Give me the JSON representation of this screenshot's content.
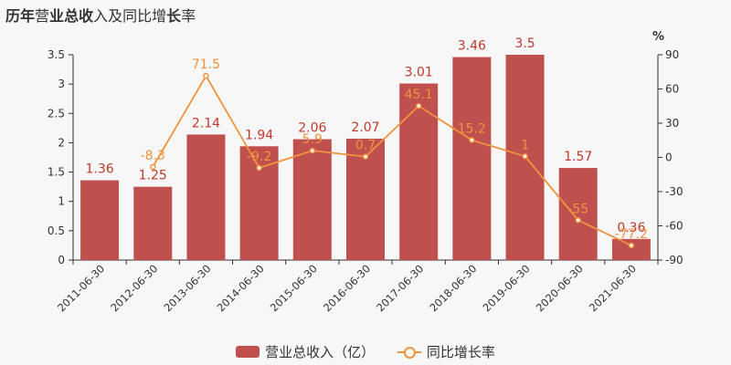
{
  "title": "历年营业总收入及同比增长率",
  "chart_data": {
    "type": "bar",
    "categories": [
      "2011-06-30",
      "2012-06-30",
      "2013-06-30",
      "2014-06-30",
      "2015-06-30",
      "2016-06-30",
      "2017-06-30",
      "2018-06-30",
      "2019-06-30",
      "2020-06-30",
      "2021-06-30"
    ],
    "series": [
      {
        "name": "营业总收入（亿）",
        "type": "bar",
        "color": "#c0504d",
        "values": [
          1.36,
          1.25,
          2.14,
          1.94,
          2.06,
          2.07,
          3.01,
          3.46,
          3.5,
          1.57,
          0.36
        ],
        "labels": [
          "1.36",
          "1.25",
          "2.14",
          "1.94",
          "2.06",
          "2.07",
          "3.01",
          "3.46",
          "3.5",
          "1.57",
          "0.36"
        ]
      },
      {
        "name": "同比增长率",
        "type": "line",
        "axis": "right",
        "color": "#f0933f",
        "values": [
          null,
          -8.3,
          71.5,
          -9.2,
          5.9,
          0.7,
          45.1,
          15.2,
          1,
          -55,
          -77.2
        ],
        "labels": [
          "",
          "-8.3",
          "71.5",
          "-9.2",
          "5.9",
          "0.7",
          "45.1",
          "15.2",
          "1",
          "-55",
          "-77.2"
        ]
      }
    ],
    "y_left": {
      "ylim": [
        0,
        3.5
      ],
      "ticks": [
        "0",
        "0.5",
        "1",
        "1.5",
        "2",
        "2.5",
        "3",
        "3.5"
      ]
    },
    "y_right": {
      "ylim": [
        -90,
        90
      ],
      "unit": "%",
      "ticks": [
        "-90",
        "-60",
        "-30",
        "0",
        "30",
        "60",
        "90"
      ]
    },
    "legend_position": "bottom",
    "grid": false
  },
  "legend": {
    "bar_label": "营业总收入（亿）",
    "line_label": "同比增长率"
  }
}
